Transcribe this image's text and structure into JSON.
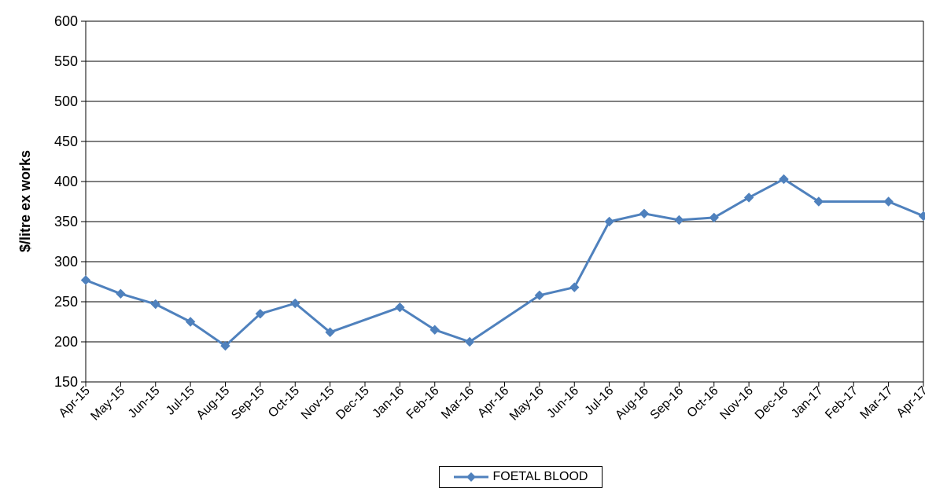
{
  "chart_data": {
    "type": "line",
    "title": "",
    "xlabel": "",
    "ylabel": "$/litre ex works",
    "ylim": [
      150,
      600
    ],
    "yticks": [
      150,
      200,
      250,
      300,
      350,
      400,
      450,
      500,
      550,
      600
    ],
    "grid": true,
    "legend_position": "bottom-center",
    "categories": [
      "Apr-15",
      "May-15",
      "Jun-15",
      "Jul-15",
      "Aug-15",
      "Sep-15",
      "Oct-15",
      "Nov-15",
      "Dec-15",
      "Jan-16",
      "Feb-16",
      "Mar-16",
      "Apr-16",
      "May-16",
      "Jun-16",
      "Jul-16",
      "Aug-16",
      "Sep-16",
      "Oct-16",
      "Nov-16",
      "Dec-16",
      "Jan-17",
      "Feb-17",
      "Mar-17",
      "Apr-17"
    ],
    "series": [
      {
        "name": "FOETAL BLOOD",
        "color": "#4F81BD",
        "values": [
          277,
          260,
          247,
          225,
          195,
          235,
          248,
          212,
          null,
          243,
          215,
          200,
          null,
          258,
          268,
          350,
          360,
          352,
          355,
          380,
          403,
          375,
          null,
          375,
          357
        ]
      }
    ]
  }
}
